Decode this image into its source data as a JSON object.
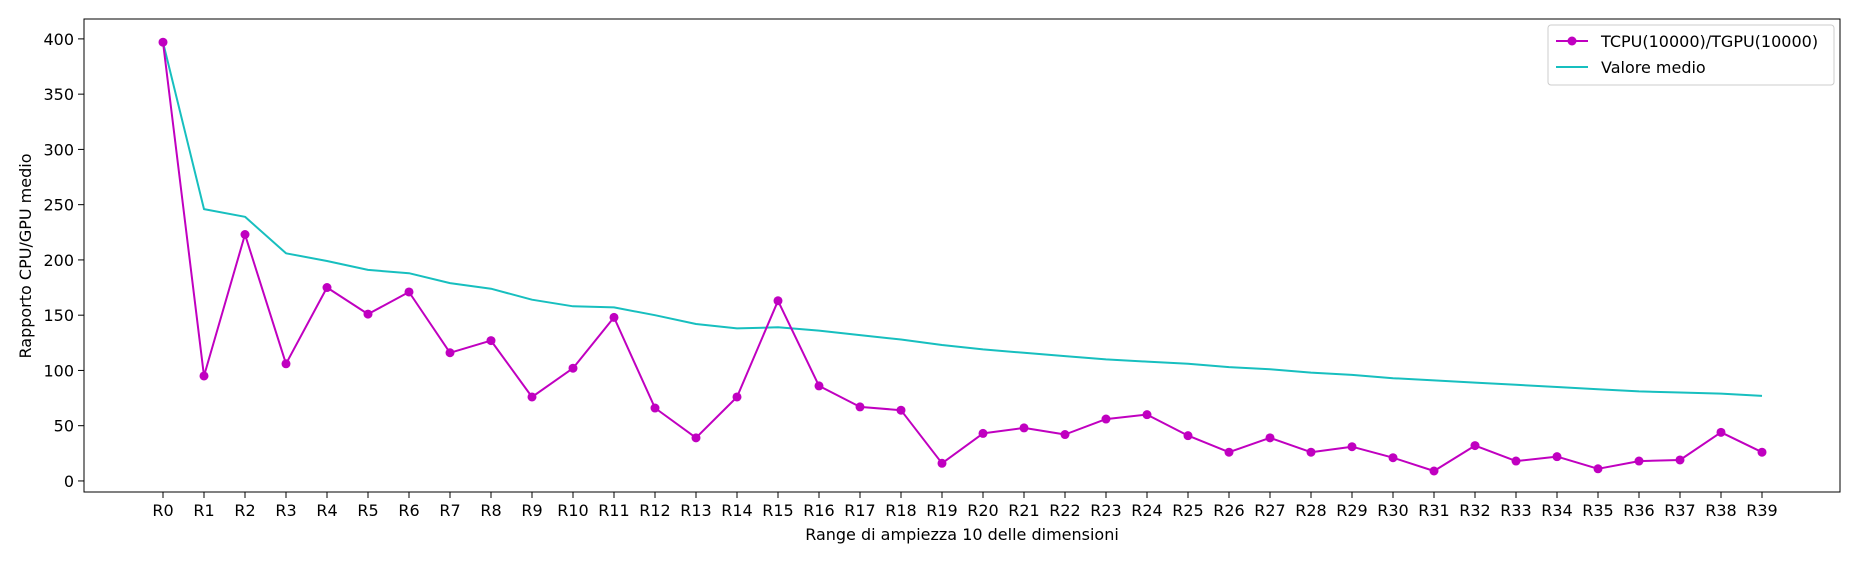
{
  "chart_data": {
    "type": "line",
    "categories": [
      "R0",
      "R1",
      "R2",
      "R3",
      "R4",
      "R5",
      "R6",
      "R7",
      "R8",
      "R9",
      "R10",
      "R11",
      "R12",
      "R13",
      "R14",
      "R15",
      "R16",
      "R17",
      "R18",
      "R19",
      "R20",
      "R21",
      "R22",
      "R23",
      "R24",
      "R25",
      "R26",
      "R27",
      "R28",
      "R29",
      "R30",
      "R31",
      "R32",
      "R33",
      "R34",
      "R35",
      "R36",
      "R37",
      "R38",
      "R39"
    ],
    "series": [
      {
        "name": "TCPU(10000)/TGPU(10000)",
        "color": "#c000c0",
        "marker": "circle",
        "values": [
          397,
          95,
          223,
          106,
          175,
          151,
          171,
          116,
          127,
          76,
          102,
          148,
          66,
          39,
          76,
          163,
          86,
          67,
          64,
          16,
          43,
          48,
          42,
          56,
          60,
          41,
          26,
          39,
          26,
          31,
          21,
          9,
          32,
          18,
          22,
          11,
          18,
          19,
          44,
          26
        ]
      },
      {
        "name": "Valore medio",
        "color": "#17bfbf",
        "marker": "none",
        "values": [
          397,
          246,
          239,
          206,
          199,
          191,
          188,
          179,
          174,
          164,
          158,
          157,
          150,
          142,
          138,
          139,
          136,
          132,
          128,
          123,
          119,
          116,
          113,
          110,
          108,
          106,
          103,
          101,
          98,
          96,
          93,
          91,
          89,
          87,
          85,
          83,
          81,
          80,
          79,
          77
        ]
      }
    ],
    "xlabel": "Range di ampiezza 10 delle dimensioni",
    "ylabel": "Rapporto CPU/GPU medio",
    "yticks": [
      0,
      50,
      100,
      150,
      200,
      250,
      300,
      350,
      400
    ],
    "ylim": [
      -10,
      418
    ],
    "grid": false,
    "legend_position": "top-right"
  }
}
